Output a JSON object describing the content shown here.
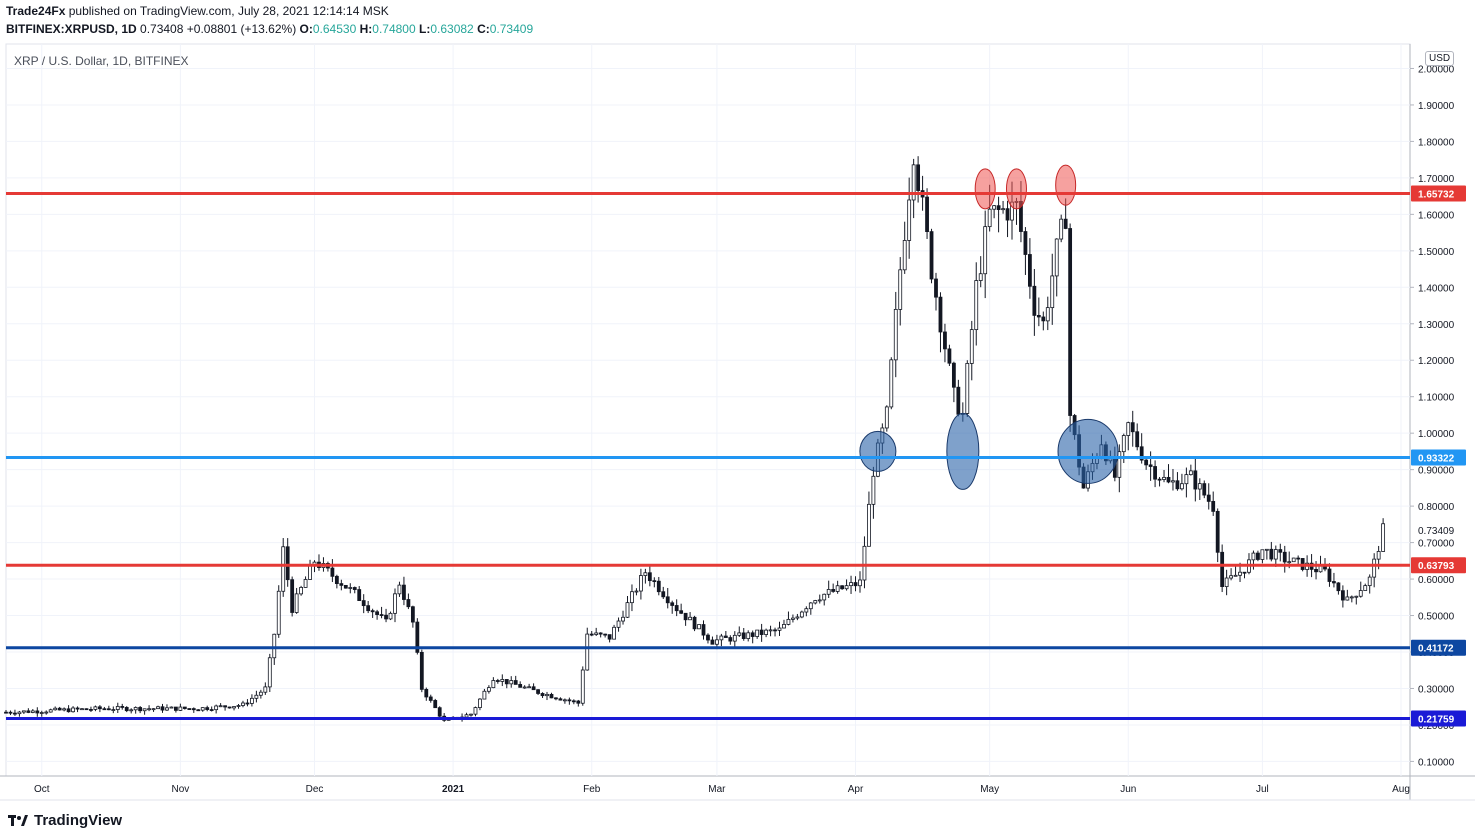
{
  "header": {
    "publisher": "Trade24Fx",
    "published_text": "published on TradingView.com, July 28, 2021 12:14:14 MSK",
    "symbol": "BITFINEX:XRPUSD, 1D",
    "last": "0.73408",
    "change": "+0.08801 (+13.62%)",
    "o_label": "O:",
    "o": "0.64530",
    "h_label": "H:",
    "h": "0.74800",
    "l_label": "L:",
    "l": "0.63082",
    "c_label": "C:",
    "c": "0.73409"
  },
  "legend_title": "XRP / U.S. Dollar, 1D, BITFINEX",
  "currency_button": "USD",
  "footer_brand": "TradingView",
  "colors": {
    "up": "#26a69a",
    "down": "#ef5350",
    "red_line": "#e53935",
    "blue_line": "#2196f3",
    "navy_line": "#0d47a1",
    "deep_blue_line": "#1a1ad6"
  },
  "chart_data": {
    "type": "candlestick",
    "title": "XRP / U.S. Dollar, 1D, BITFINEX",
    "ylabel": "USD",
    "ylim": [
      0.06,
      2.1
    ],
    "y_ticks": [
      "0.10000",
      "0.20000",
      "0.30000",
      "0.40000",
      "0.50000",
      "0.60000",
      "0.70000",
      "0.80000",
      "0.90000",
      "1.00000",
      "1.10000",
      "1.20000",
      "1.30000",
      "1.40000",
      "1.50000",
      "1.60000",
      "1.70000",
      "1.80000",
      "1.90000",
      "2.00000"
    ],
    "x_ticks": [
      "Oct",
      "Nov",
      "Dec",
      "2021",
      "Feb",
      "Mar",
      "Apr",
      "May",
      "Jun",
      "Jul",
      "Aug"
    ],
    "grid": true,
    "horizontal_levels": [
      {
        "value": 1.65732,
        "label": "1.65732",
        "color": "#e53935"
      },
      {
        "value": 0.93322,
        "label": "0.93322",
        "color": "#2196f3"
      },
      {
        "value": 0.63793,
        "label": "0.63793",
        "color": "#e53935"
      },
      {
        "value": 0.41172,
        "label": "0.41172",
        "color": "#0d47a1"
      },
      {
        "value": 0.21759,
        "label": "0.21759",
        "color": "#1a1ad6"
      }
    ],
    "last_price_label": "0.73409",
    "highlight_marks": [
      {
        "date": "2021-04-30",
        "price": 1.67,
        "color": "red"
      },
      {
        "date": "2021-05-07",
        "price": 1.67,
        "color": "red"
      },
      {
        "date": "2021-05-18",
        "price": 1.68,
        "color": "red"
      },
      {
        "date": "2021-04-06",
        "price": 0.95,
        "color": "blue"
      },
      {
        "date": "2021-04-25",
        "price": 0.95,
        "color": "blue"
      },
      {
        "date": "2021-05-23",
        "price": 0.95,
        "color": "blue"
      }
    ],
    "price_path": [
      {
        "date": "2020-09-23",
        "close": 0.235
      },
      {
        "date": "2020-10-15",
        "close": 0.245
      },
      {
        "date": "2020-11-05",
        "close": 0.245
      },
      {
        "date": "2020-11-15",
        "close": 0.255
      },
      {
        "date": "2020-11-20",
        "close": 0.3
      },
      {
        "date": "2020-11-22",
        "close": 0.45
      },
      {
        "date": "2020-11-24",
        "close": 0.68
      },
      {
        "date": "2020-11-26",
        "close": 0.52
      },
      {
        "date": "2020-12-01",
        "close": 0.65
      },
      {
        "date": "2020-12-10",
        "close": 0.56
      },
      {
        "date": "2020-12-17",
        "close": 0.48
      },
      {
        "date": "2020-12-20",
        "close": 0.59
      },
      {
        "date": "2020-12-23",
        "close": 0.48
      },
      {
        "date": "2020-12-25",
        "close": 0.3
      },
      {
        "date": "2020-12-30",
        "close": 0.21
      },
      {
        "date": "2021-01-05",
        "close": 0.23
      },
      {
        "date": "2021-01-10",
        "close": 0.33
      },
      {
        "date": "2021-01-20",
        "close": 0.29
      },
      {
        "date": "2021-01-29",
        "close": 0.26
      },
      {
        "date": "2021-01-31",
        "close": 0.45
      },
      {
        "date": "2021-02-05",
        "close": 0.44
      },
      {
        "date": "2021-02-13",
        "close": 0.62
      },
      {
        "date": "2021-02-20",
        "close": 0.52
      },
      {
        "date": "2021-02-28",
        "close": 0.43
      },
      {
        "date": "2021-03-15",
        "close": 0.46
      },
      {
        "date": "2021-03-23",
        "close": 0.55
      },
      {
        "date": "2021-04-02",
        "close": 0.59
      },
      {
        "date": "2021-04-05",
        "close": 0.9
      },
      {
        "date": "2021-04-08",
        "close": 1.05
      },
      {
        "date": "2021-04-11",
        "close": 1.45
      },
      {
        "date": "2021-04-14",
        "close": 1.78
      },
      {
        "date": "2021-04-18",
        "close": 1.45
      },
      {
        "date": "2021-04-23",
        "close": 1.1
      },
      {
        "date": "2021-04-25",
        "close": 1.05
      },
      {
        "date": "2021-04-28",
        "close": 1.4
      },
      {
        "date": "2021-05-01",
        "close": 1.6
      },
      {
        "date": "2021-05-07",
        "close": 1.62
      },
      {
        "date": "2021-05-11",
        "close": 1.35
      },
      {
        "date": "2021-05-13",
        "close": 1.3
      },
      {
        "date": "2021-05-16",
        "close": 1.5
      },
      {
        "date": "2021-05-18",
        "close": 1.6
      },
      {
        "date": "2021-05-19",
        "close": 1.05
      },
      {
        "date": "2021-05-22",
        "close": 0.85
      },
      {
        "date": "2021-05-26",
        "close": 0.98
      },
      {
        "date": "2021-05-29",
        "close": 0.88
      },
      {
        "date": "2021-06-01",
        "close": 1.02
      },
      {
        "date": "2021-06-05",
        "close": 0.92
      },
      {
        "date": "2021-06-10",
        "close": 0.86
      },
      {
        "date": "2021-06-15",
        "close": 0.88
      },
      {
        "date": "2021-06-20",
        "close": 0.8
      },
      {
        "date": "2021-06-22",
        "close": 0.58
      },
      {
        "date": "2021-06-26",
        "close": 0.62
      },
      {
        "date": "2021-07-01",
        "close": 0.68
      },
      {
        "date": "2021-07-07",
        "close": 0.65
      },
      {
        "date": "2021-07-15",
        "close": 0.62
      },
      {
        "date": "2021-07-20",
        "close": 0.54
      },
      {
        "date": "2021-07-25",
        "close": 0.6
      },
      {
        "date": "2021-07-28",
        "close": 0.734
      }
    ]
  }
}
